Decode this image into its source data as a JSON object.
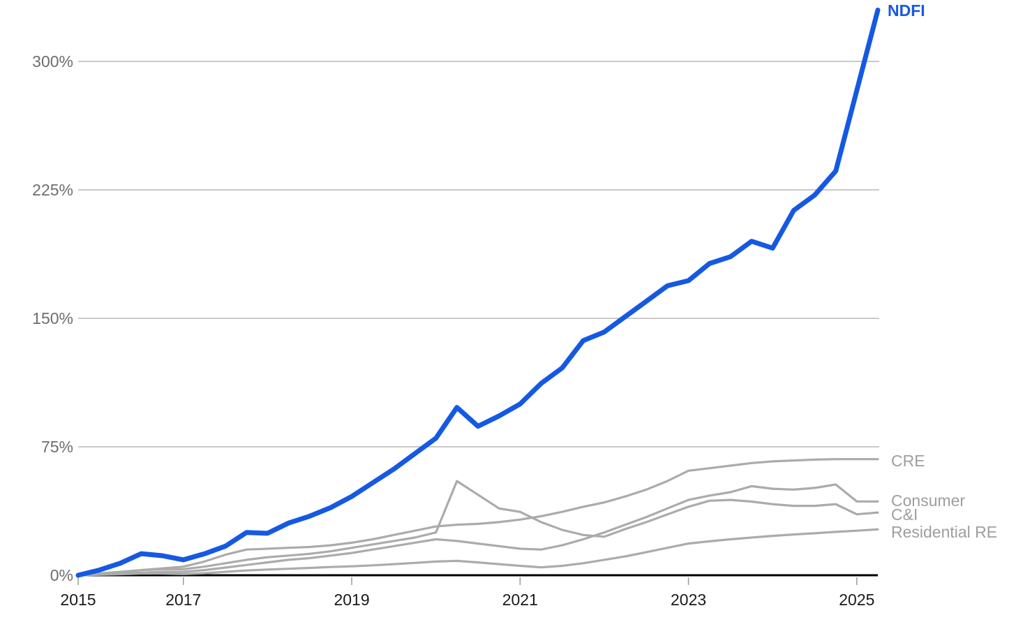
{
  "chart_data": {
    "type": "line",
    "title": "",
    "x_unit": "year (quarterly observations)",
    "x_range": [
      2015.75,
      2025.25
    ],
    "grid": "horizontal",
    "legend_position": "end-of-line labels at right",
    "x_axis": {
      "tick_years": [
        2015,
        2017,
        2019,
        2021,
        2023,
        2025
      ],
      "tick_labels": [
        "2015",
        "2017",
        "2019",
        "2021",
        "2023",
        "2025"
      ]
    },
    "y_axis": {
      "unit": "%",
      "tick_values": [
        0,
        75,
        150,
        225,
        300
      ],
      "tick_labels": [
        "0%",
        "75%",
        "150%",
        "225%",
        "300%"
      ],
      "ylim": [
        0,
        335
      ]
    },
    "x": [
      2015.75,
      2016.0,
      2016.25,
      2016.5,
      2016.75,
      2017.0,
      2017.25,
      2017.5,
      2017.75,
      2018.0,
      2018.25,
      2018.5,
      2018.75,
      2019.0,
      2019.25,
      2019.5,
      2019.75,
      2020.0,
      2020.25,
      2020.5,
      2020.75,
      2021.0,
      2021.25,
      2021.5,
      2021.75,
      2022.0,
      2022.25,
      2022.5,
      2022.75,
      2023.0,
      2023.25,
      2023.5,
      2023.75,
      2024.0,
      2024.25,
      2024.5,
      2024.75,
      2025.0,
      2025.25
    ],
    "series": [
      {
        "name": "NDFI",
        "color": "#1559e3",
        "line_width": 7,
        "label_color": "#1559e3",
        "label_dy": 1,
        "values": [
          0,
          3,
          7,
          12.6,
          11.4,
          9,
          12.5,
          17,
          25,
          24.5,
          30.5,
          34.5,
          39.5,
          46,
          54,
          62,
          71,
          80,
          98,
          87,
          93,
          100,
          112,
          121,
          137,
          142,
          151,
          160,
          169,
          172,
          182,
          186,
          195,
          191,
          213,
          222,
          236,
          283,
          330
        ]
      },
      {
        "name": "CRE",
        "color": "#ababab",
        "line_width": 3.2,
        "label_color": "#9e9e9e",
        "label_dy": 2,
        "values": [
          0,
          0.5,
          1.5,
          3,
          4,
          5,
          8,
          12,
          15,
          15.5,
          16,
          16.5,
          17.5,
          19,
          21,
          23.5,
          26,
          28.5,
          29.5,
          30,
          31,
          32.5,
          34.5,
          37,
          40,
          42.5,
          46,
          50,
          55,
          61,
          62.5,
          64,
          65.5,
          66.5,
          67,
          67.5,
          67.8,
          67.8,
          67.8
        ]
      },
      {
        "name": "Consumer",
        "color": "#ababab",
        "line_width": 3.2,
        "label_color": "#9e9e9e",
        "label_dy": -1,
        "values": [
          0,
          0.5,
          1,
          1.5,
          2,
          2,
          3,
          4.5,
          6,
          7.5,
          9,
          10,
          11.5,
          13,
          15,
          17,
          19,
          21,
          20,
          18.5,
          17,
          15.5,
          15,
          17.5,
          21,
          25,
          29.5,
          34,
          39,
          44,
          46.5,
          48.5,
          52,
          50.5,
          50,
          51,
          53,
          43.1,
          43.1
        ]
      },
      {
        "name": "C&I",
        "color": "#ababab",
        "line_width": 3.2,
        "label_color": "#9e9e9e",
        "label_dy": 3,
        "values": [
          0,
          1,
          2,
          3,
          3.5,
          3.5,
          5,
          7,
          9,
          10.5,
          11.5,
          12.5,
          14,
          16,
          18,
          20,
          22,
          25,
          55,
          47,
          39,
          37,
          31,
          26.5,
          23.5,
          22.5,
          27,
          31,
          35.5,
          40,
          43.5,
          44,
          43,
          41.5,
          40.5,
          40.5,
          41.5,
          35.6,
          36.6
        ]
      },
      {
        "name": "Residential RE",
        "color": "#ababab",
        "line_width": 3.2,
        "label_color": "#9e9e9e",
        "label_dy": 4,
        "values": [
          0,
          0.3,
          0.6,
          1,
          1,
          0.7,
          1.2,
          2,
          2.8,
          3.3,
          3.8,
          4.3,
          4.8,
          5.2,
          5.8,
          6.5,
          7.2,
          8,
          8.4,
          7.5,
          6.5,
          5.5,
          4.6,
          5.5,
          7,
          9,
          11,
          13.5,
          16,
          18.5,
          19.8,
          21,
          22,
          23,
          23.8,
          24.5,
          25.3,
          26,
          26.8
        ]
      }
    ],
    "colors": {
      "background": "#ffffff",
      "gridline": "#b9b9b9",
      "baseline_axis": "#000000",
      "x_tick_mark": "#999999",
      "y_tick_label": "#6e6e6e",
      "x_tick_label": "#1a1a1a"
    }
  }
}
